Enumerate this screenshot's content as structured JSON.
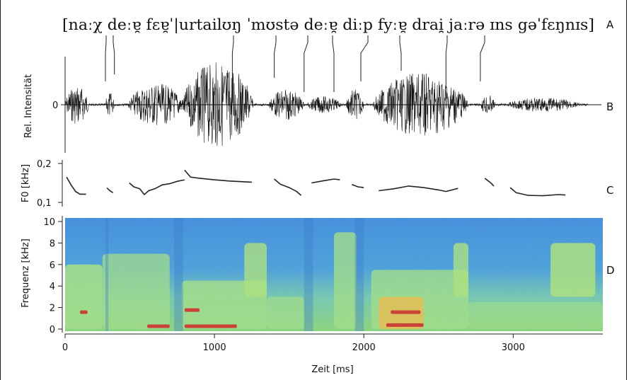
{
  "transcription": "[naːχ deːɐ̯ fɛɐ̯ˈ|urtailʊŋ ˈmʊstə deːɐ̯ diːp fyːɐ̯ drai̯ jaːrə ɪns gəˈfɛŋnɪs]",
  "panel_labels": [
    "A",
    "B",
    "C",
    "D"
  ],
  "panels": {
    "intensity": {
      "ylabel": "Rel. Intensität",
      "tick_label": "0"
    },
    "f0": {
      "ylabel": "F0 [kHz]",
      "ticks": [
        "0,2",
        "0,1"
      ]
    },
    "spectrogram": {
      "ylabel": "Frequenz [kHz]",
      "ticks": [
        "10",
        "8",
        "6",
        "4",
        "2",
        "0"
      ]
    }
  },
  "xaxis": {
    "label": "Zeit [ms]",
    "ticks": [
      "0",
      "1000",
      "2000",
      "3000"
    ]
  },
  "colors": {
    "background": "#ffffff",
    "ink": "#111111",
    "spec_low": "#3a86d4",
    "spec_mid": "#9ee07a",
    "spec_high": "#f0a020",
    "spec_peak": "#d62f1a"
  },
  "chart_data": {
    "type": "line",
    "title": "",
    "xlabel": "Zeit [ms]",
    "xlim": [
      0,
      3600
    ],
    "x_ticks": [
      0,
      1000,
      2000,
      3000
    ],
    "series": [
      {
        "name": "F0",
        "ylabel": "F0 [kHz]",
        "ylim": [
          0.09,
          0.21
        ],
        "segments": [
          [
            [
              10,
              0.165
            ],
            [
              40,
              0.145
            ],
            [
              70,
              0.128
            ],
            [
              100,
              0.121
            ],
            [
              140,
              0.121
            ]
          ],
          [
            [
              280,
              0.137
            ],
            [
              300,
              0.13
            ],
            [
              320,
              0.125
            ]
          ],
          [
            [
              430,
              0.15
            ],
            [
              460,
              0.14
            ],
            [
              500,
              0.135
            ],
            [
              530,
              0.12
            ],
            [
              560,
              0.13
            ],
            [
              600,
              0.135
            ],
            [
              650,
              0.145
            ],
            [
              700,
              0.148
            ],
            [
              750,
              0.154
            ],
            [
              800,
              0.158
            ]
          ],
          [
            [
              800,
              0.183
            ],
            [
              840,
              0.165
            ],
            [
              900,
              0.162
            ],
            [
              1000,
              0.158
            ],
            [
              1100,
              0.155
            ],
            [
              1200,
              0.153
            ],
            [
              1250,
              0.152
            ]
          ],
          [
            [
              1400,
              0.16
            ],
            [
              1440,
              0.147
            ],
            [
              1500,
              0.138
            ],
            [
              1550,
              0.128
            ],
            [
              1580,
              0.118
            ]
          ],
          [
            [
              1650,
              0.15
            ],
            [
              1720,
              0.155
            ],
            [
              1800,
              0.16
            ],
            [
              1840,
              0.158
            ]
          ],
          [
            [
              1920,
              0.146
            ],
            [
              1960,
              0.14
            ],
            [
              2000,
              0.138
            ]
          ],
          [
            [
              2100,
              0.13
            ],
            [
              2200,
              0.135
            ],
            [
              2300,
              0.142
            ],
            [
              2400,
              0.138
            ],
            [
              2500,
              0.132
            ],
            [
              2550,
              0.128
            ],
            [
              2600,
              0.133
            ],
            [
              2630,
              0.136
            ]
          ],
          [
            [
              2810,
              0.162
            ],
            [
              2850,
              0.15
            ],
            [
              2870,
              0.142
            ]
          ],
          [
            [
              2980,
              0.138
            ],
            [
              3020,
              0.125
            ],
            [
              3100,
              0.118
            ],
            [
              3200,
              0.117
            ],
            [
              3300,
              0.12
            ],
            [
              3350,
              0.119
            ]
          ]
        ]
      }
    ],
    "spectrogram": {
      "ylabel": "Frequenz [kHz]",
      "ylim": [
        0,
        10.5
      ],
      "y_ticks": [
        0,
        2,
        4,
        6,
        8,
        10
      ]
    }
  }
}
